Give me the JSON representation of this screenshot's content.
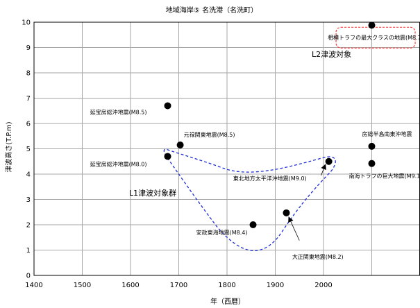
{
  "chart_data": {
    "type": "scatter",
    "title": "地域海岸⑤ 名洗港（名洗町）",
    "xlabel": "年（西暦）",
    "ylabel": "津波高さ(T.P.m)",
    "xlim": [
      1400,
      2200
    ],
    "ylim": [
      0,
      10
    ],
    "xticks": [
      1400,
      1500,
      1600,
      1700,
      1800,
      1900,
      2000
    ],
    "yticks": [
      0,
      1,
      2,
      3,
      4,
      5,
      6,
      7,
      8,
      9,
      10
    ],
    "grid": true,
    "points": [
      {
        "x": 1677,
        "y": 6.7,
        "label": "延宝房総沖地震(M8.5)"
      },
      {
        "x": 1703,
        "y": 5.15,
        "label": "元禄関東地震(M8.5)"
      },
      {
        "x": 1677,
        "y": 4.7,
        "label": "延宝房総沖地震(M8.0)"
      },
      {
        "x": 1854,
        "y": 2.0,
        "label": "安政東海地震(M8.4)"
      },
      {
        "x": 1923,
        "y": 2.47,
        "label": "大正関東地震(M8.2)"
      },
      {
        "x": 2011,
        "y": 4.5,
        "label": "東北地方太平洋沖地震(M9.0)"
      },
      {
        "x": 2100,
        "y": 5.1,
        "label": "房総半島南東沖地震"
      },
      {
        "x": 2100,
        "y": 4.42,
        "label": "南海トラフの巨大地震(M9.1)"
      },
      {
        "x": 2100,
        "y": 9.88,
        "label": "相模トラフの最大クラスの地震(M8.7)"
      }
    ],
    "annotations": {
      "l1_group": "L1津波対象群",
      "l2_target": "L2津波対象"
    },
    "colors": {
      "l1": "#1f2fd6",
      "l2": "#ff3b3b",
      "marker": "#000000",
      "grid": "#a6a6a6"
    }
  }
}
